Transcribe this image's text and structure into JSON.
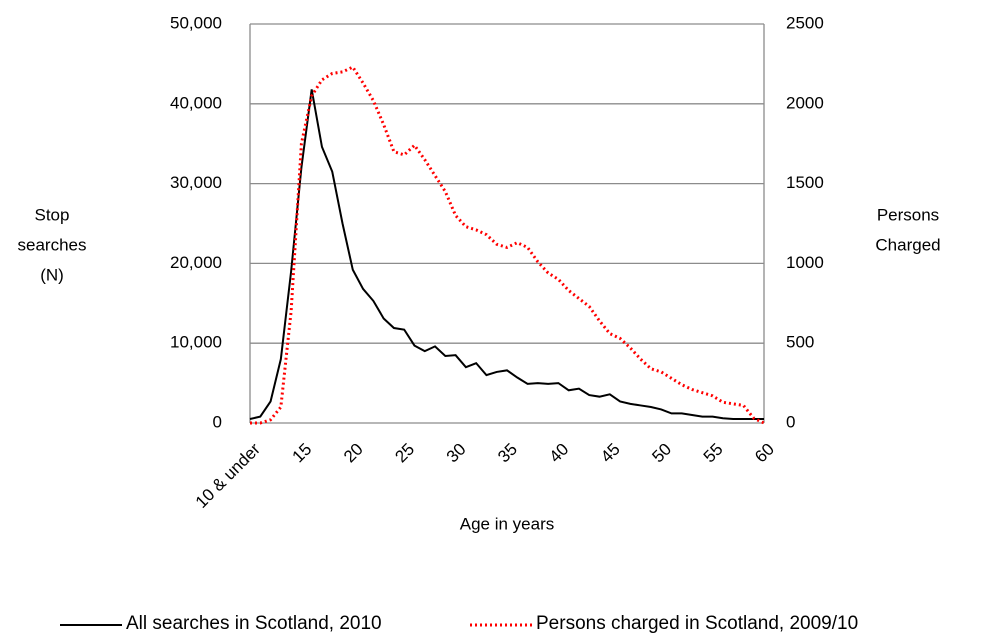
{
  "chart_data": {
    "type": "line",
    "x_label": "Age in years",
    "y_label": [
      "Stop",
      "searches",
      "(N)"
    ],
    "y2_label": [
      "Persons",
      "Charged"
    ],
    "categories": [
      "10 & under",
      null,
      null,
      null,
      null,
      "15",
      null,
      null,
      null,
      null,
      "20",
      null,
      null,
      null,
      null,
      "25",
      null,
      null,
      null,
      null,
      "30",
      null,
      null,
      null,
      null,
      "35",
      null,
      null,
      null,
      null,
      "40",
      null,
      null,
      null,
      null,
      "45",
      null,
      null,
      null,
      null,
      "50",
      null,
      null,
      null,
      null,
      "55",
      null,
      null,
      null,
      null,
      "60"
    ],
    "series": [
      {
        "name": "All searches in Scotland, 2010",
        "color": "#000000",
        "dash": "solid",
        "values": [
          500,
          800,
          2700,
          8000,
          19000,
          32000,
          41800,
          34600,
          31500,
          25000,
          19200,
          16800,
          15300,
          13100,
          11900,
          11700,
          9700,
          9000,
          9600,
          8400,
          8500,
          7000,
          7500,
          6000,
          6400,
          6600,
          5700,
          4900,
          5000,
          4900,
          5000,
          4100,
          4300,
          3500,
          3300,
          3600,
          2700,
          2400,
          2200,
          2000,
          1700,
          1200,
          1200,
          1000,
          800,
          800,
          600,
          500,
          500,
          500,
          500
        ]
      },
      {
        "name": "Persons charged in Scotland, 2009/10",
        "color": "#ff0000",
        "dash": "dotted",
        "axis": "y2",
        "values": [
          0,
          0,
          20,
          100,
          700,
          1750,
          2050,
          2150,
          2190,
          2200,
          2230,
          2130,
          2020,
          1870,
          1700,
          1680,
          1740,
          1650,
          1550,
          1450,
          1300,
          1230,
          1210,
          1180,
          1120,
          1100,
          1130,
          1100,
          1010,
          940,
          900,
          830,
          780,
          730,
          640,
          560,
          530,
          470,
          400,
          340,
          320,
          280,
          240,
          210,
          190,
          170,
          130,
          120,
          110,
          30,
          0
        ]
      }
    ],
    "ylim": [
      0,
      50000
    ],
    "yticks": [
      0,
      {
        "value": 10000,
        "label": "10,000"
      },
      {
        "value": 20000,
        "label": "20,000"
      },
      {
        "value": 30000,
        "label": "30,000"
      },
      {
        "value": 40000,
        "label": "40,000"
      },
      {
        "value": 50000,
        "label": "50,000"
      }
    ],
    "y2lim": [
      0,
      2500
    ],
    "y2ticks": [
      0,
      500,
      1000,
      1500,
      2000,
      2500
    ],
    "grid": true,
    "legend": "bottom"
  }
}
